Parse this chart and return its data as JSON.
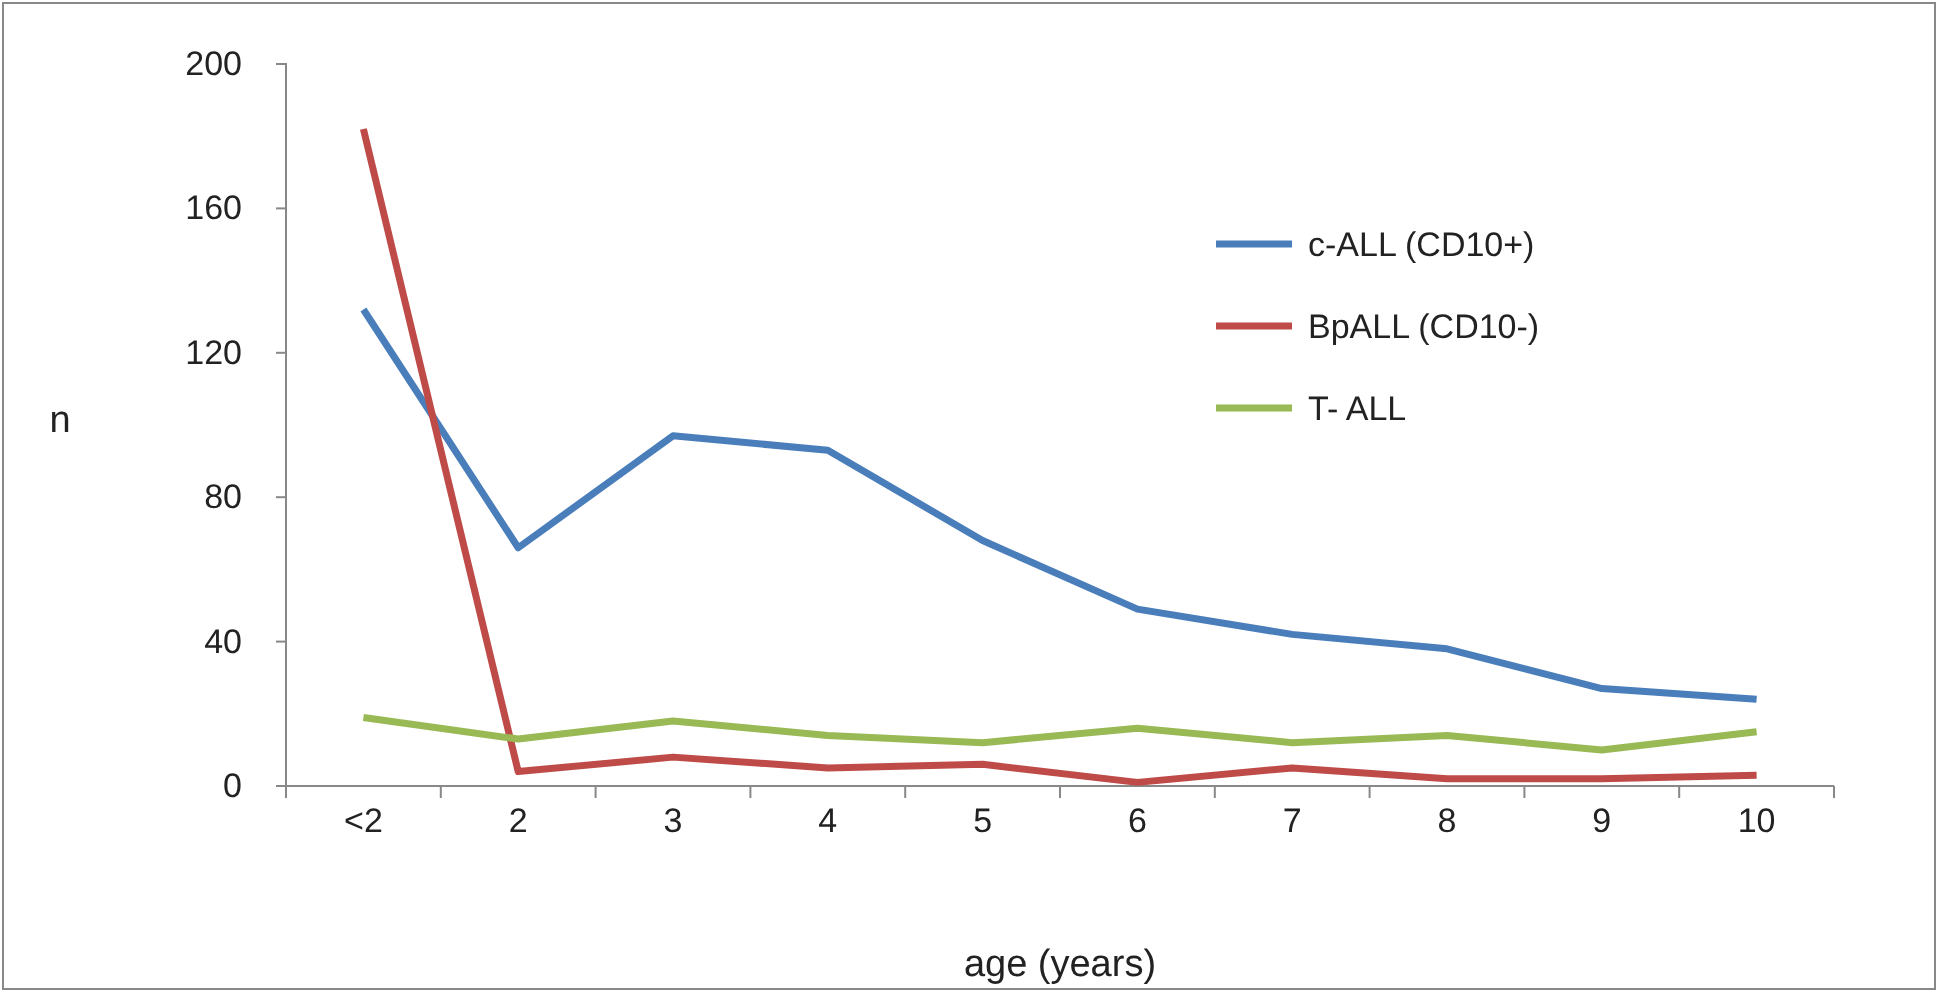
{
  "chart_data": {
    "type": "line",
    "xlabel": "age (years)",
    "ylabel": "n",
    "categories": [
      "<2",
      "2",
      "3",
      "4",
      "5",
      "6",
      "7",
      "8",
      "9",
      "10"
    ],
    "series": [
      {
        "name": "c-ALL (CD10+)",
        "color": "#4a7ebb",
        "values": [
          132,
          66,
          97,
          93,
          68,
          49,
          42,
          38,
          27,
          24
        ]
      },
      {
        "name": "BpALL (CD10-)",
        "color": "#be4b48",
        "values": [
          182,
          4,
          8,
          5,
          6,
          1,
          5,
          2,
          2,
          3
        ]
      },
      {
        "name": "T- ALL",
        "color": "#98b954",
        "values": [
          19,
          13,
          18,
          14,
          12,
          16,
          12,
          14,
          10,
          15
        ]
      }
    ],
    "ylim": [
      0,
      200
    ],
    "yticks": [
      0,
      40,
      80,
      120,
      160,
      200
    ],
    "grid": false,
    "legend": "top right",
    "marker": "none",
    "line_style": "solid"
  }
}
